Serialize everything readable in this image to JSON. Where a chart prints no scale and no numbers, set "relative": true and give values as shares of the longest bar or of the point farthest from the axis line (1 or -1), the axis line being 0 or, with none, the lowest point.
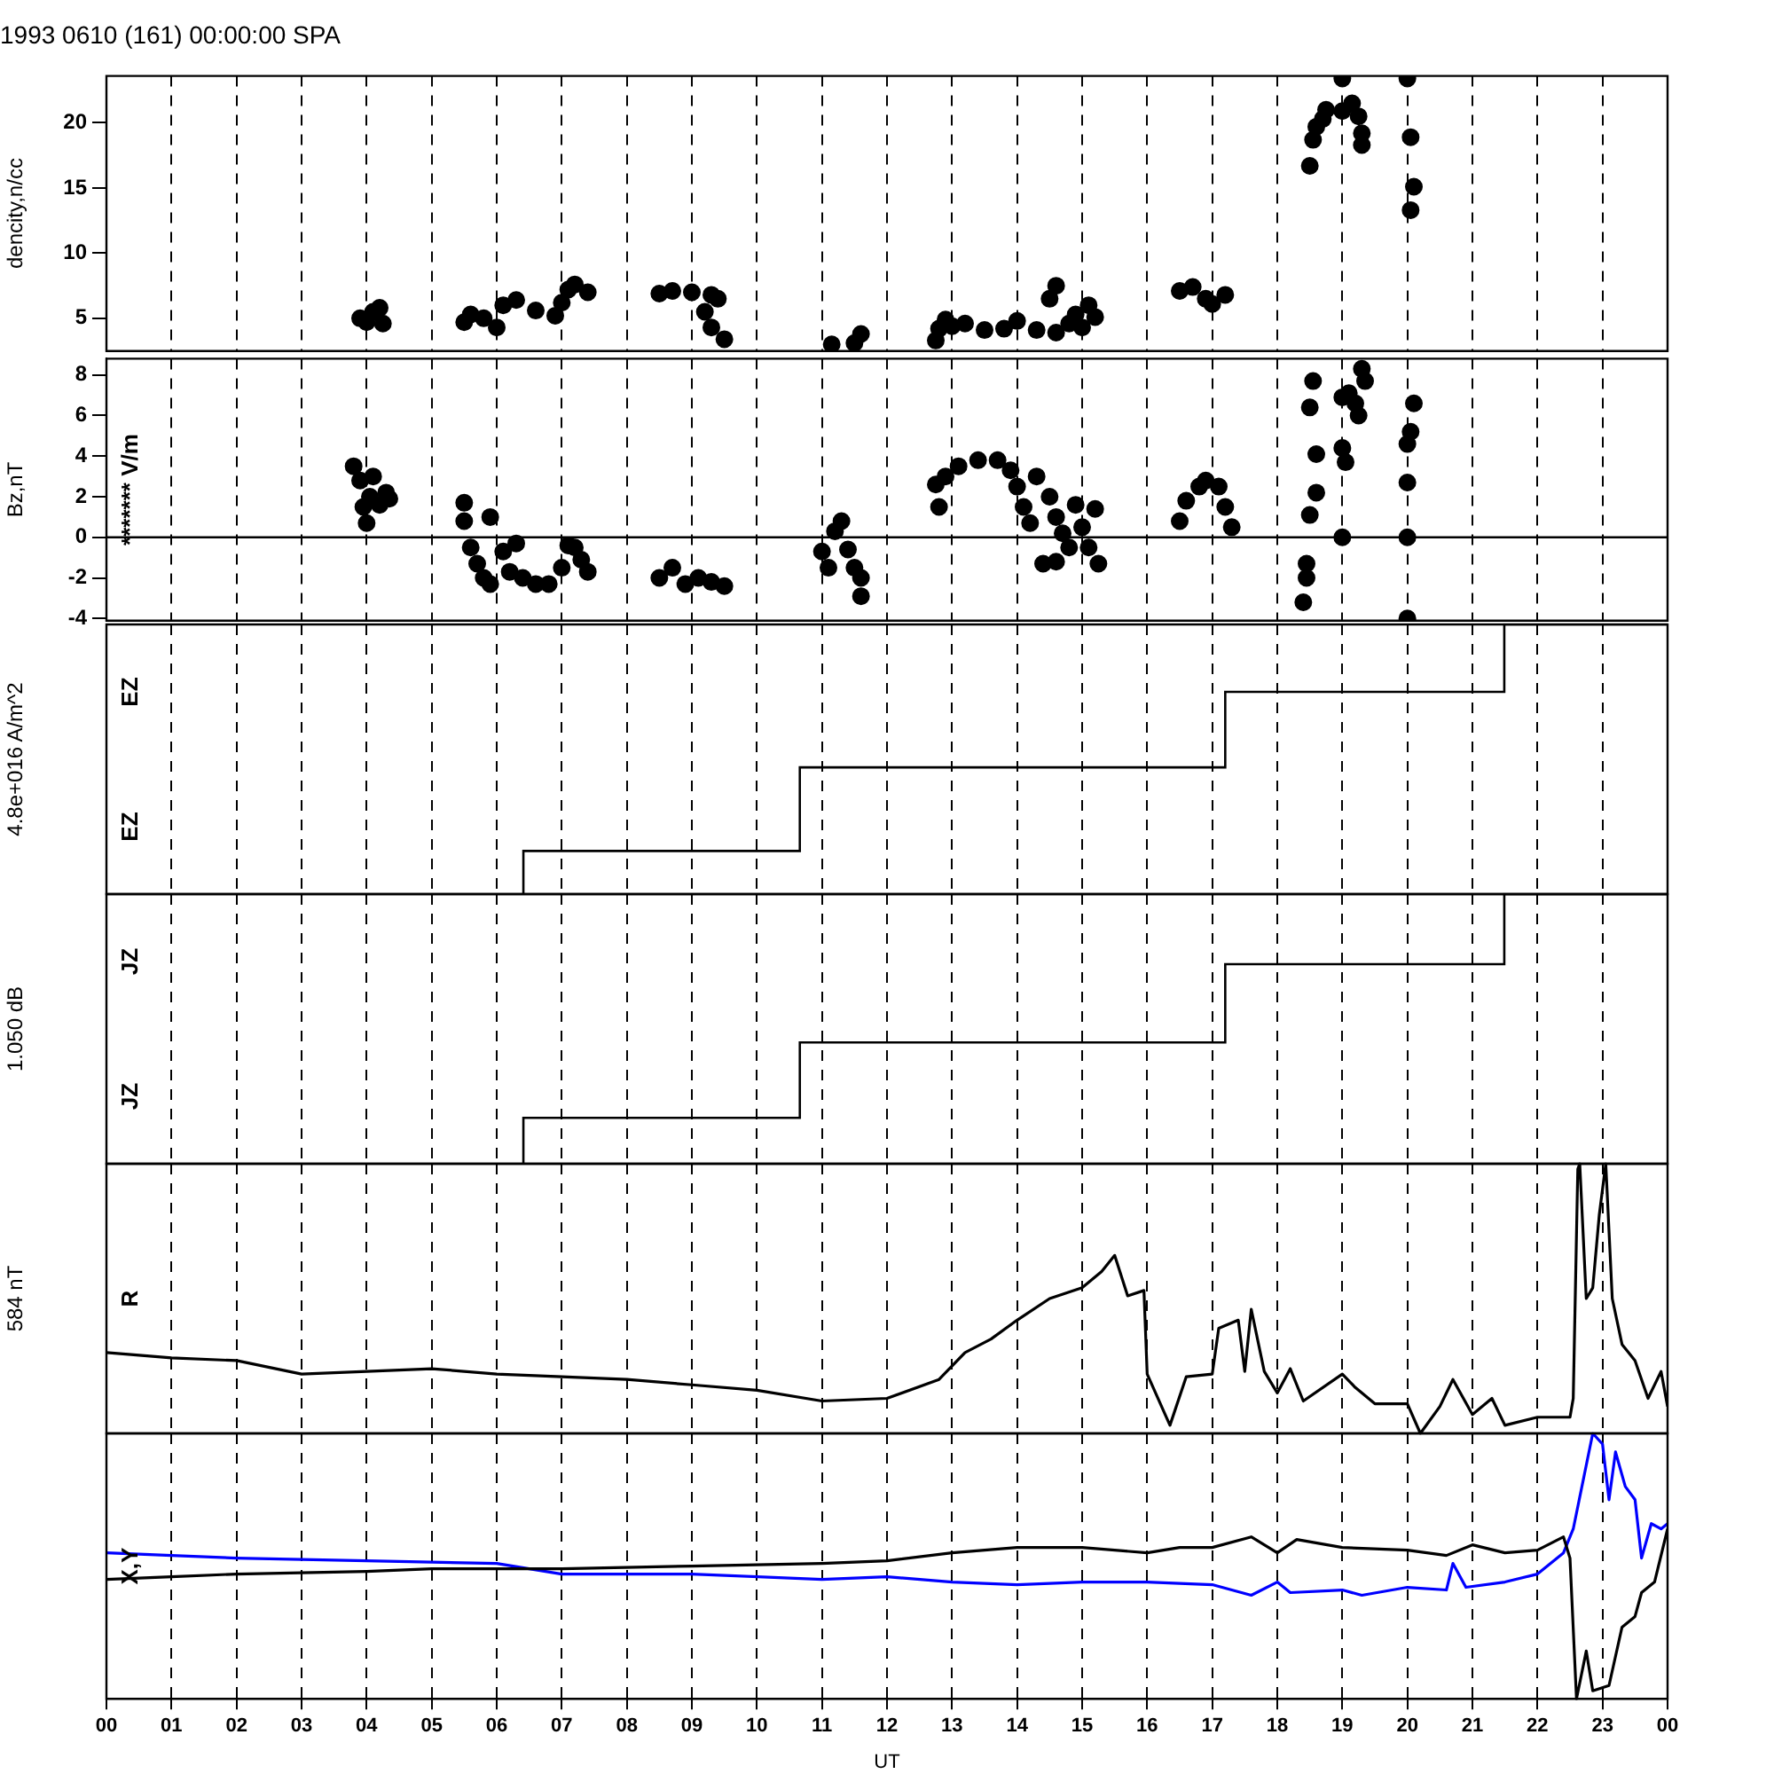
{
  "chart_data": [
    {
      "type": "scatter",
      "title": "1993 0610 (161) 00:00:00 SPA",
      "ylabel": "dencity,n/cc",
      "marker": "circle",
      "grid": "x",
      "legend": false,
      "tick_labels": "y",
      "xlim": [
        0,
        24
      ],
      "ylim": [
        2.5,
        23.6
      ],
      "yticks": [
        5,
        10,
        15,
        20
      ],
      "xticks": [
        {
          "value": 0,
          "label": null
        },
        {
          "value": 1,
          "label": null
        },
        {
          "value": 2,
          "label": null
        },
        {
          "value": 3,
          "label": null
        },
        {
          "value": 4,
          "label": null
        },
        {
          "value": 5,
          "label": null
        },
        {
          "value": 6,
          "label": null
        },
        {
          "value": 7,
          "label": null
        },
        {
          "value": 8,
          "label": null
        },
        {
          "value": 9,
          "label": null
        },
        {
          "value": 10,
          "label": null
        },
        {
          "value": 11,
          "label": null
        },
        {
          "value": 12,
          "label": null
        },
        {
          "value": 13,
          "label": null
        },
        {
          "value": 14,
          "label": null
        },
        {
          "value": 15,
          "label": null
        },
        {
          "value": 16,
          "label": null
        },
        {
          "value": 17,
          "label": null
        },
        {
          "value": 18,
          "label": null
        },
        {
          "value": 19,
          "label": null
        },
        {
          "value": 20,
          "label": null
        },
        {
          "value": 21,
          "label": null
        },
        {
          "value": 22,
          "label": null
        },
        {
          "value": 23,
          "label": null
        },
        {
          "value": 24,
          "label": null
        }
      ],
      "series": [
        {
          "color": "#000000",
          "x": [
            3.9,
            4.0,
            4.1,
            4.2,
            4.25,
            5.5,
            5.6,
            5.8,
            6.0,
            6.1,
            6.3,
            6.6,
            6.9,
            7.0,
            7.1,
            7.2,
            7.4,
            8.5,
            8.7,
            9.0,
            9.2,
            9.3,
            9.3,
            9.4,
            9.5,
            11.15,
            11.5,
            11.6,
            12.75,
            12.8,
            12.9,
            13.0,
            13.2,
            13.5,
            13.8,
            14.0,
            14.3,
            14.5,
            14.6,
            14.6,
            14.8,
            14.9,
            15.0,
            15.1,
            15.2,
            16.5,
            16.7,
            16.9,
            17.0,
            17.2,
            18.5,
            18.55,
            18.6,
            18.7,
            18.75,
            19.0,
            19.0,
            19.15,
            19.25,
            19.3,
            19.3,
            20.0,
            20.05,
            20.1,
            20.05
          ],
          "values": [
            5.0,
            4.7,
            5.5,
            5.8,
            4.6,
            4.7,
            5.3,
            5.0,
            4.3,
            6.0,
            6.4,
            5.6,
            5.2,
            6.2,
            7.2,
            7.6,
            7.0,
            6.9,
            7.1,
            7.0,
            5.5,
            6.8,
            4.3,
            6.5,
            3.4,
            3.0,
            3.1,
            3.8,
            3.3,
            4.2,
            4.9,
            4.4,
            4.6,
            4.1,
            4.2,
            4.8,
            4.1,
            6.5,
            7.5,
            3.9,
            4.6,
            5.3,
            4.3,
            6.0,
            5.1,
            7.1,
            7.4,
            6.5,
            6.1,
            6.8,
            16.7,
            18.7,
            19.7,
            20.3,
            21.0,
            23.4,
            20.9,
            21.5,
            20.5,
            19.2,
            18.3,
            23.4,
            18.9,
            15.1,
            13.3
          ]
        }
      ]
    },
    {
      "type": "scatter",
      "ylabel": "Bz,nT",
      "annotations": [
        "******* V/m"
      ],
      "marker": "circle",
      "grid": "x",
      "legend": false,
      "tick_labels": "y",
      "xlim": [
        0,
        24
      ],
      "ylim": [
        -4.1,
        8.8
      ],
      "yticks": [
        -4,
        -2,
        0,
        2,
        4,
        6,
        8
      ],
      "ref_lines": [
        {
          "axis": "y",
          "value": 0,
          "color": "#000000",
          "line_style": "solid"
        }
      ],
      "xticks": [
        {
          "value": 0,
          "label": null
        },
        {
          "value": 1,
          "label": null
        },
        {
          "value": 2,
          "label": null
        },
        {
          "value": 3,
          "label": null
        },
        {
          "value": 4,
          "label": null
        },
        {
          "value": 5,
          "label": null
        },
        {
          "value": 6,
          "label": null
        },
        {
          "value": 7,
          "label": null
        },
        {
          "value": 8,
          "label": null
        },
        {
          "value": 9,
          "label": null
        },
        {
          "value": 10,
          "label": null
        },
        {
          "value": 11,
          "label": null
        },
        {
          "value": 12,
          "label": null
        },
        {
          "value": 13,
          "label": null
        },
        {
          "value": 14,
          "label": null
        },
        {
          "value": 15,
          "label": null
        },
        {
          "value": 16,
          "label": null
        },
        {
          "value": 17,
          "label": null
        },
        {
          "value": 18,
          "label": null
        },
        {
          "value": 19,
          "label": null
        },
        {
          "value": 20,
          "label": null
        },
        {
          "value": 21,
          "label": null
        },
        {
          "value": 22,
          "label": null
        },
        {
          "value": 23,
          "label": null
        },
        {
          "value": 24,
          "label": null
        }
      ],
      "series": [
        {
          "color": "#000000",
          "x": [
            3.8,
            3.9,
            3.95,
            4.0,
            4.05,
            4.1,
            4.2,
            4.3,
            4.35,
            5.5,
            5.5,
            5.6,
            5.7,
            5.8,
            5.9,
            5.9,
            6.1,
            6.2,
            6.3,
            6.4,
            6.6,
            6.8,
            7.0,
            7.1,
            7.2,
            7.3,
            7.4,
            8.5,
            8.7,
            8.9,
            9.1,
            9.3,
            9.5,
            11.0,
            11.1,
            11.2,
            11.3,
            11.4,
            11.5,
            11.6,
            11.6,
            12.75,
            12.8,
            12.9,
            13.1,
            13.4,
            13.7,
            13.9,
            14.0,
            14.1,
            14.2,
            14.3,
            14.4,
            14.5,
            14.6,
            14.6,
            14.7,
            14.8,
            14.9,
            15.0,
            15.1,
            15.2,
            15.25,
            16.5,
            16.6,
            16.8,
            16.9,
            17.1,
            17.2,
            17.3,
            18.55,
            18.5,
            18.6,
            18.6,
            18.5,
            18.45,
            18.45,
            18.4,
            19.3,
            19.35,
            19.1,
            19.0,
            19.2,
            19.25,
            19.0,
            19.05,
            19.0,
            20.1,
            20.05,
            20.0,
            20.0,
            20.0,
            20.0
          ],
          "values": [
            3.5,
            2.8,
            1.5,
            0.7,
            2.0,
            3.0,
            1.6,
            2.2,
            1.9,
            1.7,
            0.8,
            -0.5,
            -1.3,
            -2.0,
            -2.3,
            1.0,
            -0.7,
            -1.7,
            -0.3,
            -2.0,
            -2.3,
            -2.3,
            -1.5,
            -0.4,
            -0.5,
            -1.1,
            -1.7,
            -2.0,
            -1.5,
            -2.3,
            -2.0,
            -2.2,
            -2.4,
            -0.7,
            -1.5,
            0.3,
            0.8,
            -0.6,
            -1.5,
            -2.0,
            -2.9,
            2.6,
            1.5,
            3.0,
            3.5,
            3.8,
            3.8,
            3.3,
            2.5,
            1.5,
            0.7,
            3.0,
            -1.3,
            2.0,
            1.0,
            -1.2,
            0.2,
            -0.5,
            1.6,
            0.5,
            -0.5,
            1.4,
            -1.3,
            0.8,
            1.8,
            2.5,
            2.8,
            2.5,
            1.5,
            0.5,
            7.7,
            6.4,
            4.1,
            2.2,
            1.1,
            -1.3,
            -2.0,
            -3.2,
            8.3,
            7.7,
            7.1,
            6.9,
            6.6,
            6.0,
            4.4,
            3.7,
            0.0,
            6.6,
            5.2,
            4.6,
            2.7,
            0.0,
            -4.0
          ]
        }
      ]
    },
    {
      "type": "step",
      "relative": true,
      "ylabel": "4.8e+016 A/m^2",
      "annotations": [
        "EZ",
        "EZ"
      ],
      "marker": "none",
      "line_style": "solid",
      "grid": "x",
      "legend": false,
      "tick_labels": false,
      "xlim": [
        0,
        24
      ],
      "xticks": [
        {
          "value": 0,
          "label": null
        },
        {
          "value": 1,
          "label": null
        },
        {
          "value": 2,
          "label": null
        },
        {
          "value": 3,
          "label": null
        },
        {
          "value": 4,
          "label": null
        },
        {
          "value": 5,
          "label": null
        },
        {
          "value": 6,
          "label": null
        },
        {
          "value": 7,
          "label": null
        },
        {
          "value": 8,
          "label": null
        },
        {
          "value": 9,
          "label": null
        },
        {
          "value": 10,
          "label": null
        },
        {
          "value": 11,
          "label": null
        },
        {
          "value": 12,
          "label": null
        },
        {
          "value": 13,
          "label": null
        },
        {
          "value": 14,
          "label": null
        },
        {
          "value": 15,
          "label": null
        },
        {
          "value": 16,
          "label": null
        },
        {
          "value": 17,
          "label": null
        },
        {
          "value": 18,
          "label": null
        },
        {
          "value": 19,
          "label": null
        },
        {
          "value": 20,
          "label": null
        },
        {
          "value": 21,
          "label": null
        },
        {
          "value": 22,
          "label": null
        },
        {
          "value": 23,
          "label": null
        },
        {
          "value": 24,
          "label": null
        }
      ],
      "series": [
        {
          "color": "#000000",
          "x": [
            6.41,
            6.41,
            10.66,
            17.2,
            21.49,
            24
          ],
          "values": [
            0,
            0.16,
            0.47,
            0.75,
            1,
            1
          ]
        }
      ]
    },
    {
      "type": "step",
      "relative": true,
      "ylabel": "1.050 dB",
      "annotations": [
        "JZ",
        "JZ"
      ],
      "marker": "none",
      "line_style": "solid",
      "grid": "x",
      "legend": false,
      "tick_labels": false,
      "xlim": [
        0,
        24
      ],
      "xticks": [
        {
          "value": 0,
          "label": null
        },
        {
          "value": 1,
          "label": null
        },
        {
          "value": 2,
          "label": null
        },
        {
          "value": 3,
          "label": null
        },
        {
          "value": 4,
          "label": null
        },
        {
          "value": 5,
          "label": null
        },
        {
          "value": 6,
          "label": null
        },
        {
          "value": 7,
          "label": null
        },
        {
          "value": 8,
          "label": null
        },
        {
          "value": 9,
          "label": null
        },
        {
          "value": 10,
          "label": null
        },
        {
          "value": 11,
          "label": null
        },
        {
          "value": 12,
          "label": null
        },
        {
          "value": 13,
          "label": null
        },
        {
          "value": 14,
          "label": null
        },
        {
          "value": 15,
          "label": null
        },
        {
          "value": 16,
          "label": null
        },
        {
          "value": 17,
          "label": null
        },
        {
          "value": 18,
          "label": null
        },
        {
          "value": 19,
          "label": null
        },
        {
          "value": 20,
          "label": null
        },
        {
          "value": 21,
          "label": null
        },
        {
          "value": 22,
          "label": null
        },
        {
          "value": 23,
          "label": null
        },
        {
          "value": 24,
          "label": null
        }
      ],
      "series": [
        {
          "color": "#000000",
          "x": [
            6.41,
            6.41,
            10.66,
            17.2,
            21.49,
            24
          ],
          "values": [
            0,
            0.17,
            0.45,
            0.74,
            1,
            1
          ]
        }
      ]
    },
    {
      "type": "line",
      "relative": true,
      "ylabel": "584 nT",
      "annotations": [
        "R"
      ],
      "marker": "none",
      "line_style": "solid",
      "grid": "x",
      "legend": false,
      "tick_labels": false,
      "xlim": [
        0,
        24
      ],
      "xticks": [
        {
          "value": 0,
          "label": null
        },
        {
          "value": 1,
          "label": null
        },
        {
          "value": 2,
          "label": null
        },
        {
          "value": 3,
          "label": null
        },
        {
          "value": 4,
          "label": null
        },
        {
          "value": 5,
          "label": null
        },
        {
          "value": 6,
          "label": null
        },
        {
          "value": 7,
          "label": null
        },
        {
          "value": 8,
          "label": null
        },
        {
          "value": 9,
          "label": null
        },
        {
          "value": 10,
          "label": null
        },
        {
          "value": 11,
          "label": null
        },
        {
          "value": 12,
          "label": null
        },
        {
          "value": 13,
          "label": null
        },
        {
          "value": 14,
          "label": null
        },
        {
          "value": 15,
          "label": null
        },
        {
          "value": 16,
          "label": null
        },
        {
          "value": 17,
          "label": null
        },
        {
          "value": 18,
          "label": null
        },
        {
          "value": 19,
          "label": null
        },
        {
          "value": 20,
          "label": null
        },
        {
          "value": 21,
          "label": null
        },
        {
          "value": 22,
          "label": null
        },
        {
          "value": 23,
          "label": null
        },
        {
          "value": 24,
          "label": null
        }
      ],
      "series": [
        {
          "color": "#000000",
          "x": [
            0,
            1,
            2,
            3,
            4,
            5,
            6,
            7,
            8,
            9,
            10,
            11,
            12,
            12.8,
            13.2,
            13.6,
            14,
            14.5,
            15,
            15.3,
            15.5,
            15.7,
            15.95,
            16.0,
            16.35,
            16.6,
            17.0,
            17.1,
            17.4,
            17.5,
            17.6,
            17.8,
            18,
            18.2,
            18.4,
            19.0,
            19.2,
            19.5,
            20.0,
            20.2,
            20.5,
            20.7,
            21.0,
            21.3,
            21.5,
            22.0,
            22.5,
            22.55,
            22.62,
            22.65,
            22.75,
            22.85,
            22.95,
            23.05,
            23.15,
            23.3,
            23.5,
            23.7,
            23.9,
            24
          ],
          "values": [
            0.3,
            0.28,
            0.27,
            0.22,
            0.23,
            0.24,
            0.22,
            0.21,
            0.2,
            0.18,
            0.16,
            0.12,
            0.13,
            0.2,
            0.3,
            0.35,
            0.42,
            0.5,
            0.54,
            0.6,
            0.66,
            0.51,
            0.53,
            0.22,
            0.03,
            0.21,
            0.22,
            0.39,
            0.42,
            0.23,
            0.46,
            0.23,
            0.15,
            0.24,
            0.12,
            0.22,
            0.17,
            0.11,
            0.11,
            0,
            0.1,
            0.2,
            0.07,
            0.13,
            0.03,
            0.06,
            0.06,
            0.13,
            0.98,
            1,
            0.5,
            0.54,
            0.81,
            1,
            0.5,
            0.33,
            0.27,
            0.13,
            0.23,
            0.1
          ]
        }
      ]
    },
    {
      "type": "line",
      "relative": true,
      "xlabel": "UT",
      "annotations": [
        "X,Y"
      ],
      "marker": "none",
      "line_style": "solid",
      "grid": "x",
      "legend": false,
      "tick_labels": "x",
      "xlim": [
        0,
        24
      ],
      "xticks": [
        {
          "value": 0,
          "label": "00"
        },
        {
          "value": 1,
          "label": "01"
        },
        {
          "value": 2,
          "label": "02"
        },
        {
          "value": 3,
          "label": "03"
        },
        {
          "value": 4,
          "label": "04"
        },
        {
          "value": 5,
          "label": "05"
        },
        {
          "value": 6,
          "label": "06"
        },
        {
          "value": 7,
          "label": "07"
        },
        {
          "value": 8,
          "label": "08"
        },
        {
          "value": 9,
          "label": "09"
        },
        {
          "value": 10,
          "label": "10"
        },
        {
          "value": 11,
          "label": "11"
        },
        {
          "value": 12,
          "label": "12"
        },
        {
          "value": 13,
          "label": "13"
        },
        {
          "value": 14,
          "label": "14"
        },
        {
          "value": 15,
          "label": "15"
        },
        {
          "value": 16,
          "label": "16"
        },
        {
          "value": 17,
          "label": "17"
        },
        {
          "value": 18,
          "label": "18"
        },
        {
          "value": 19,
          "label": "19"
        },
        {
          "value": 20,
          "label": "20"
        },
        {
          "value": 21,
          "label": "21"
        },
        {
          "value": 22,
          "label": "22"
        },
        {
          "value": 23,
          "label": "23"
        },
        {
          "value": 24,
          "label": "00"
        }
      ],
      "series": [
        {
          "color": "#000000",
          "x": [
            0,
            1,
            2,
            4,
            5,
            7,
            9,
            11,
            12,
            13,
            14,
            15,
            16,
            16.5,
            17,
            17.6,
            18,
            18.3,
            19,
            20,
            20.6,
            21,
            21.5,
            22,
            22.4,
            22.5,
            22.6,
            22.75,
            22.85,
            23.1,
            23.3,
            23.5,
            23.6,
            23.8,
            24
          ],
          "values": [
            0.45,
            0.46,
            0.47,
            0.48,
            0.49,
            0.49,
            0.5,
            0.51,
            0.52,
            0.55,
            0.57,
            0.57,
            0.55,
            0.57,
            0.57,
            0.61,
            0.55,
            0.6,
            0.57,
            0.56,
            0.54,
            0.58,
            0.55,
            0.56,
            0.61,
            0.53,
            0,
            0.18,
            0.03,
            0.05,
            0.27,
            0.31,
            0.4,
            0.44,
            0.64
          ]
        },
        {
          "color": "#0000ff",
          "x": [
            0,
            1,
            2,
            4,
            6,
            7,
            9,
            11,
            12,
            13,
            14,
            15,
            16,
            17,
            17.6,
            18,
            18.2,
            19,
            19.3,
            20,
            20.6,
            20.7,
            20.9,
            21.5,
            22,
            22.4,
            22.55,
            22.7,
            22.85,
            23.0,
            23.1,
            23.2,
            23.35,
            23.5,
            23.6,
            23.75,
            23.9,
            24
          ],
          "values": [
            0.55,
            0.54,
            0.53,
            0.52,
            0.51,
            0.47,
            0.47,
            0.45,
            0.46,
            0.44,
            0.43,
            0.44,
            0.44,
            0.43,
            0.39,
            0.44,
            0.4,
            0.41,
            0.39,
            0.42,
            0.41,
            0.51,
            0.42,
            0.44,
            0.47,
            0.55,
            0.64,
            0.82,
            1,
            0.96,
            0.75,
            0.93,
            0.8,
            0.75,
            0.53,
            0.66,
            0.64,
            0.66
          ]
        }
      ]
    }
  ]
}
